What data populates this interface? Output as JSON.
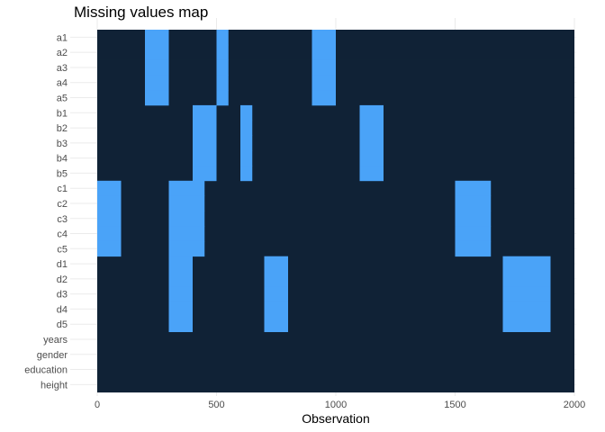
{
  "chart_data": {
    "type": "heatmap",
    "title": "Missing values map",
    "xlabel": "Observation",
    "ylabel": "",
    "xlim": [
      0,
      2000
    ],
    "xticks": [
      0,
      500,
      1000,
      1500,
      2000
    ],
    "variables": [
      "a1",
      "a2",
      "a3",
      "a4",
      "a5",
      "b1",
      "b2",
      "b3",
      "b4",
      "b5",
      "c1",
      "c2",
      "c3",
      "c4",
      "c5",
      "d1",
      "d2",
      "d3",
      "d4",
      "d5",
      "years",
      "gender",
      "education",
      "height"
    ],
    "present_color": "#102236",
    "missing_color": "#4aa3f8",
    "grid": true,
    "legend": "none",
    "missing_blocks": [
      {
        "variables": [
          "a1",
          "a2",
          "a3",
          "a4",
          "a5"
        ],
        "start": 200,
        "end": 300
      },
      {
        "variables": [
          "a1",
          "a2",
          "a3",
          "a4",
          "a5"
        ],
        "start": 500,
        "end": 550
      },
      {
        "variables": [
          "a1",
          "a2",
          "a3",
          "a4",
          "a5"
        ],
        "start": 900,
        "end": 1000
      },
      {
        "variables": [
          "b1",
          "b2",
          "b3",
          "b4",
          "b5"
        ],
        "start": 400,
        "end": 500
      },
      {
        "variables": [
          "b1",
          "b2",
          "b3",
          "b4",
          "b5"
        ],
        "start": 600,
        "end": 650
      },
      {
        "variables": [
          "b1",
          "b2",
          "b3",
          "b4",
          "b5"
        ],
        "start": 1100,
        "end": 1200
      },
      {
        "variables": [
          "c1",
          "c2",
          "c3",
          "c4",
          "c5"
        ],
        "start": 0,
        "end": 100
      },
      {
        "variables": [
          "c1",
          "c2",
          "c3",
          "c4",
          "c5"
        ],
        "start": 300,
        "end": 450
      },
      {
        "variables": [
          "c1",
          "c2",
          "c3",
          "c4",
          "c5"
        ],
        "start": 1500,
        "end": 1650
      },
      {
        "variables": [
          "d1",
          "d2",
          "d3",
          "d4",
          "d5"
        ],
        "start": 300,
        "end": 400
      },
      {
        "variables": [
          "d1",
          "d2",
          "d3",
          "d4",
          "d5"
        ],
        "start": 700,
        "end": 800
      },
      {
        "variables": [
          "d1",
          "d2",
          "d3",
          "d4",
          "d5"
        ],
        "start": 1700,
        "end": 1900
      }
    ]
  }
}
